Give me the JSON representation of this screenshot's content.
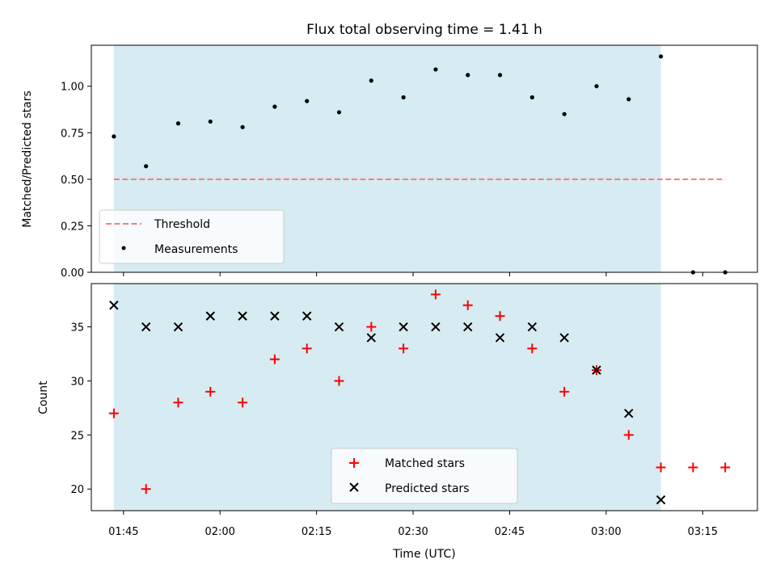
{
  "chart_data": [
    {
      "type": "scatter",
      "title": "Flux total observing time = 1.41 h",
      "xlabel": "",
      "ylabel": "Matched/Predicted stars",
      "ylim": [
        0,
        1.22
      ],
      "yticks": [
        "0.00",
        "0.25",
        "0.50",
        "0.75",
        "1.00"
      ],
      "ytick_values": [
        0,
        0.25,
        0.5,
        0.75,
        1.0
      ],
      "shaded_span": {
        "start": "01:43:30",
        "end": "03:08:30",
        "color": "#add8e6"
      },
      "legend_position": "lower-left",
      "series": [
        {
          "name": "Threshold",
          "kind": "dashed-line",
          "color": "#f08080",
          "x": [
            "01:43:30",
            "03:18:30"
          ],
          "y": [
            0.5,
            0.5
          ]
        },
        {
          "name": "Measurements",
          "kind": "dot",
          "color": "#000000",
          "x": [
            "01:43:30",
            "01:48:30",
            "01:53:30",
            "01:58:30",
            "02:03:30",
            "02:08:30",
            "02:13:30",
            "02:18:30",
            "02:23:30",
            "02:28:30",
            "02:33:30",
            "02:38:30",
            "02:43:30",
            "02:48:30",
            "02:53:30",
            "02:58:30",
            "03:03:30",
            "03:08:30",
            "03:13:30",
            "03:18:30"
          ],
          "y": [
            0.73,
            0.57,
            0.8,
            0.81,
            0.78,
            0.89,
            0.92,
            0.86,
            1.03,
            0.94,
            1.09,
            1.06,
            1.06,
            0.94,
            0.85,
            1.0,
            0.93,
            1.16,
            0.0,
            0.0
          ]
        }
      ]
    },
    {
      "type": "scatter",
      "title": "",
      "xlabel": "Time (UTC)",
      "ylabel": "Count",
      "ylim": [
        18,
        39
      ],
      "yticks": [
        "20",
        "25",
        "30",
        "35"
      ],
      "ytick_values": [
        20,
        25,
        30,
        35
      ],
      "xlim": [
        "01:40:00",
        "03:23:30"
      ],
      "xticks": [
        "01:45",
        "02:00",
        "02:15",
        "02:30",
        "02:45",
        "03:00",
        "03:15"
      ],
      "shaded_span": {
        "start": "01:43:30",
        "end": "03:08:30",
        "color": "#add8e6"
      },
      "legend_position": "lower-center",
      "series": [
        {
          "name": "Matched stars",
          "kind": "plus",
          "color": "#ff0000",
          "x": [
            "01:43:30",
            "01:48:30",
            "01:53:30",
            "01:58:30",
            "02:03:30",
            "02:08:30",
            "02:13:30",
            "02:18:30",
            "02:23:30",
            "02:28:30",
            "02:33:30",
            "02:38:30",
            "02:43:30",
            "02:48:30",
            "02:53:30",
            "02:58:30",
            "03:03:30",
            "03:08:30",
            "03:13:30",
            "03:18:30"
          ],
          "y": [
            27,
            20,
            28,
            29,
            28,
            32,
            33,
            30,
            35,
            33,
            38,
            37,
            36,
            33,
            29,
            31,
            25,
            22,
            22,
            22
          ]
        },
        {
          "name": "Predicted stars",
          "kind": "x",
          "color": "#000000",
          "x": [
            "01:43:30",
            "01:48:30",
            "01:53:30",
            "01:58:30",
            "02:03:30",
            "02:08:30",
            "02:13:30",
            "02:18:30",
            "02:23:30",
            "02:28:30",
            "02:33:30",
            "02:38:30",
            "02:43:30",
            "02:48:30",
            "02:53:30",
            "02:58:30",
            "03:03:30",
            "03:08:30"
          ],
          "y": [
            37,
            35,
            35,
            36,
            36,
            36,
            36,
            35,
            34,
            35,
            35,
            35,
            34,
            35,
            34,
            31,
            27,
            19
          ]
        }
      ]
    }
  ]
}
